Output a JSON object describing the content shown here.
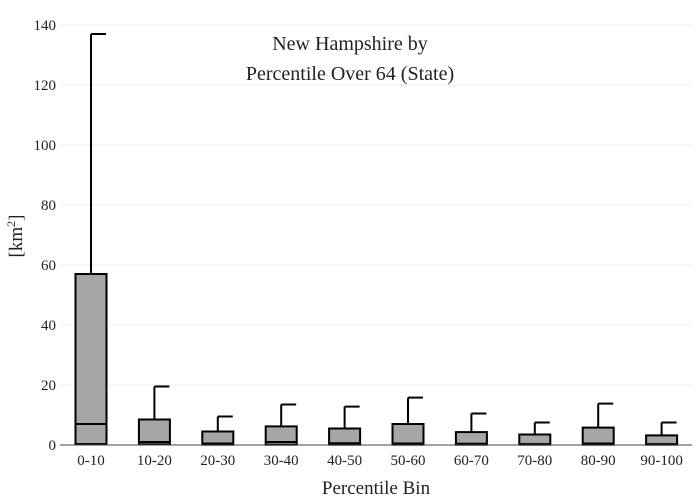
{
  "chart_data": {
    "type": "box",
    "title_lines": [
      "New Hampshire  by",
      "Percentile Over 64 (State)"
    ],
    "xlabel": "Percentile Bin",
    "ylabel": "[km",
    "ylabel_sup": "2",
    "ylabel_close": "]",
    "ylim": [
      0,
      140
    ],
    "yticks": [
      0,
      20,
      40,
      60,
      80,
      100,
      120,
      140
    ],
    "grid": true,
    "categories": [
      "0-10",
      "10-20",
      "20-30",
      "30-40",
      "40-50",
      "50-60",
      "60-70",
      "70-80",
      "80-90",
      "90-100"
    ],
    "boxes": [
      {
        "min": 0,
        "q1": 0.3,
        "median": 7,
        "q3": 57,
        "max": 137
      },
      {
        "min": 0,
        "q1": 0.2,
        "median": 1,
        "q3": 8.5,
        "max": 19.5
      },
      {
        "min": 0,
        "q1": 0.1,
        "median": 0.5,
        "q3": 4.5,
        "max": 9.5
      },
      {
        "min": 0,
        "q1": 0.1,
        "median": 1,
        "q3": 6.2,
        "max": 13.5
      },
      {
        "min": 0,
        "q1": 0.1,
        "median": 0.6,
        "q3": 5.5,
        "max": 12.8
      },
      {
        "min": 0,
        "q1": 0.1,
        "median": 0.5,
        "q3": 7,
        "max": 15.8
      },
      {
        "min": 0,
        "q1": 0.1,
        "median": 0.4,
        "q3": 4.3,
        "max": 10.5
      },
      {
        "min": 0,
        "q1": 0.1,
        "median": 0.3,
        "q3": 3.5,
        "max": 7.5
      },
      {
        "min": 0,
        "q1": 0.1,
        "median": 0.5,
        "q3": 5.8,
        "max": 13.8
      },
      {
        "min": 0,
        "q1": 0.1,
        "median": 0.3,
        "q3": 3.2,
        "max": 7.5
      }
    ]
  }
}
